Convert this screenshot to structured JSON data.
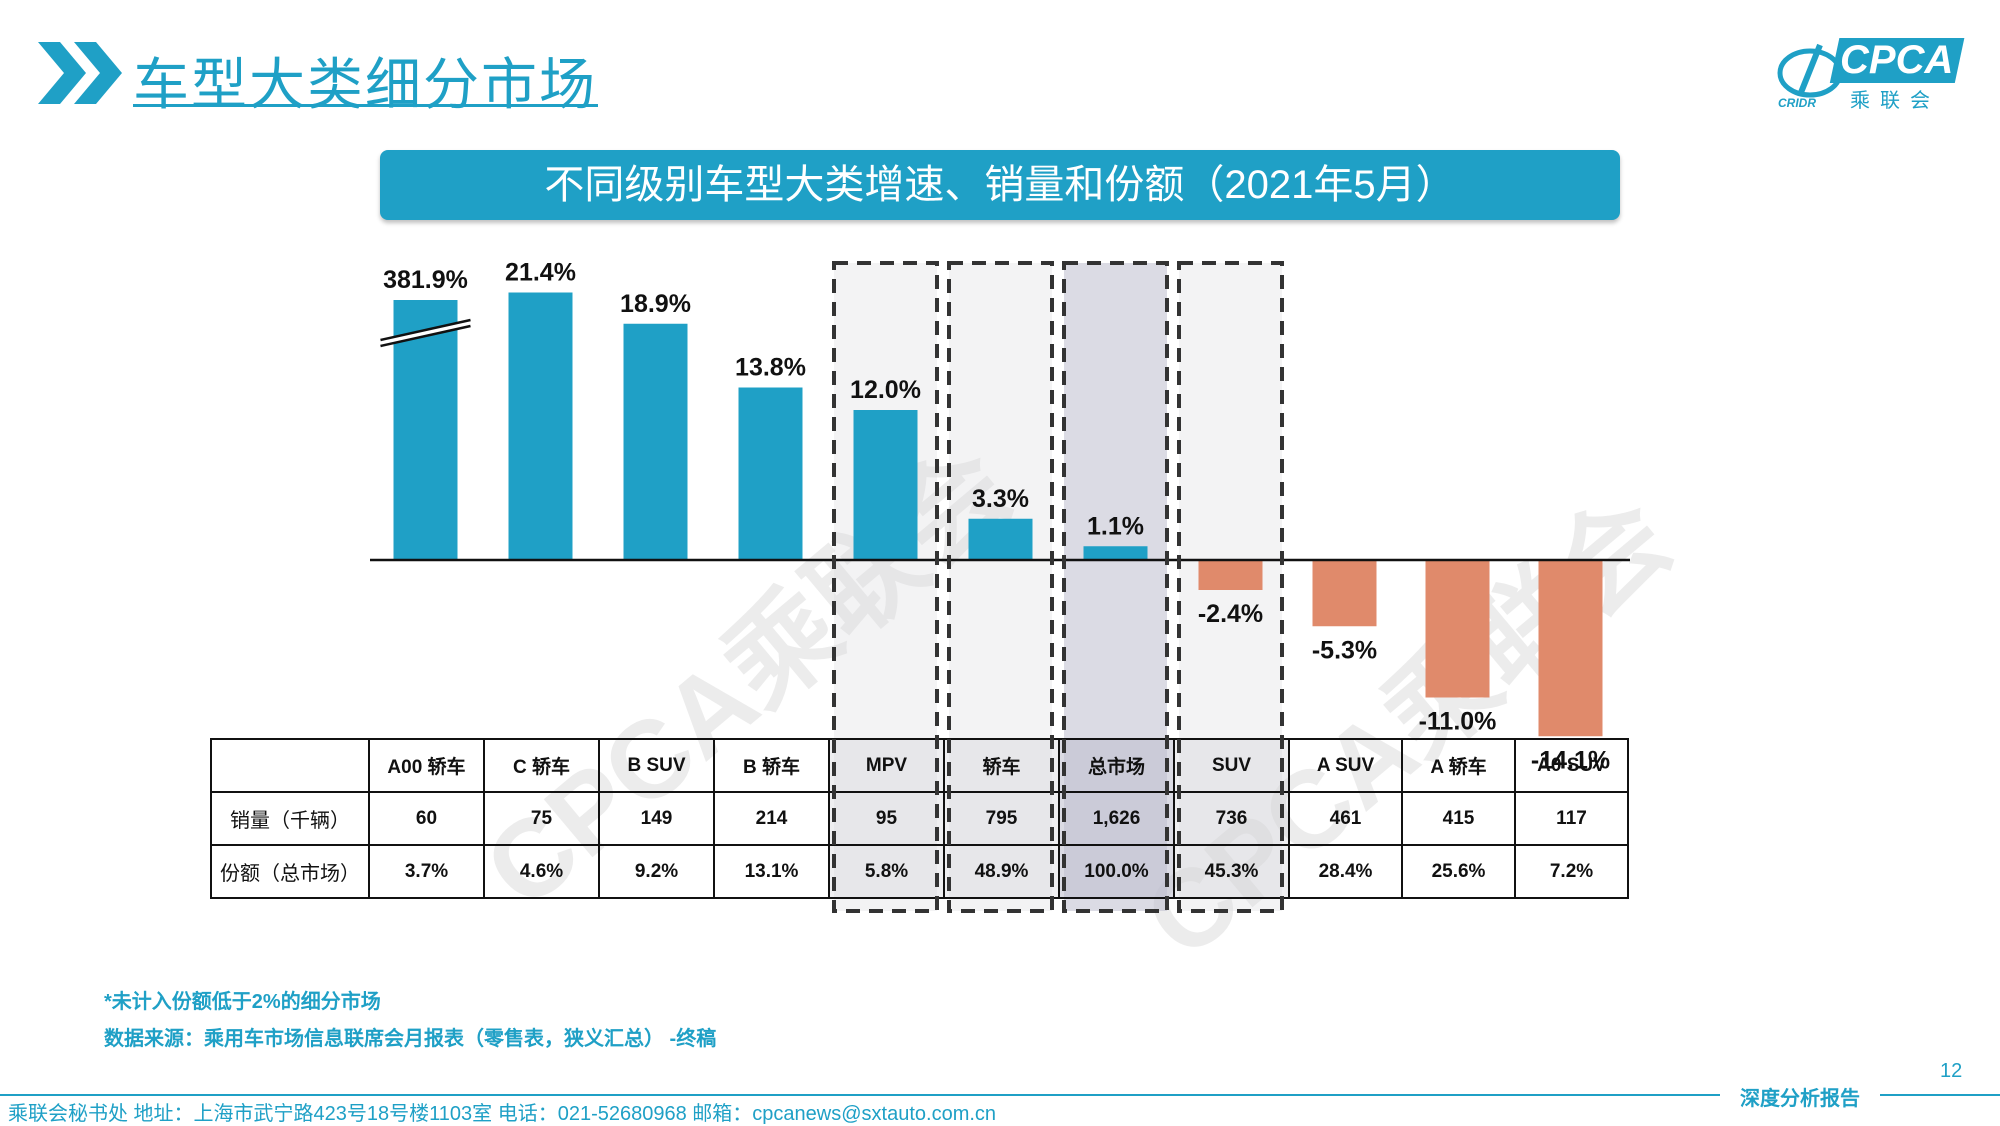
{
  "header": {
    "title": "车型大类细分市场",
    "logo_text": "CPCA",
    "logo_sub": "乘联会",
    "logo_small": "CRIDR"
  },
  "banner": {
    "text": "不同级别车型大类增速、销量和份额（2021年5月）"
  },
  "chart_data": {
    "type": "bar",
    "categories": [
      "A00 轿车",
      "C 轿车",
      "B SUV",
      "B 轿车",
      "MPV",
      "轿车",
      "总市场",
      "SUV",
      "A SUV",
      "A 轿车",
      "A0 SUV"
    ],
    "series": [
      {
        "values": [
          381.9,
          21.4,
          18.9,
          13.8,
          12.0,
          3.3,
          1.1,
          -2.4,
          -5.3,
          -11.0,
          -14.1
        ]
      }
    ],
    "data_labels": [
      "381.9%",
      "21.4%",
      "18.9%",
      "13.8%",
      "12.0%",
      "3.3%",
      "1.1%",
      "-2.4%",
      "-5.3%",
      "-11.0%",
      "-14.1%"
    ],
    "axis_break": "A00 轿车",
    "highlighted": [
      "MPV",
      "轿车",
      "总市场",
      "SUV"
    ],
    "colors": {
      "positive": "#1fa0c6",
      "negative": "#e08a6b",
      "highlight_box": "#333333"
    }
  },
  "table": {
    "rows": [
      {
        "label": "销量（千辆）",
        "values": [
          "60",
          "75",
          "149",
          "214",
          "95",
          "795",
          "1,626",
          "736",
          "461",
          "415",
          "117"
        ]
      },
      {
        "label": "份额（总市场）",
        "values": [
          "3.7%",
          "4.6%",
          "9.2%",
          "13.1%",
          "5.8%",
          "48.9%",
          "100.0%",
          "45.3%",
          "28.4%",
          "25.6%",
          "7.2%"
        ]
      }
    ]
  },
  "notes": {
    "note1": "*未计入份额低于2%的细分市场",
    "note2": "数据来源：乘用车市场信息联席会月报表（零售表，狭义汇总） -终稿"
  },
  "footer": {
    "text": "乘联会秘书处   地址：上海市武宁路423号18号楼1103室  电话：021-52680968   邮箱：cpcanews@sxtauto.com.cn",
    "brand": "深度分析报告",
    "page_number": "12"
  },
  "watermark": "CPCA乘联会"
}
